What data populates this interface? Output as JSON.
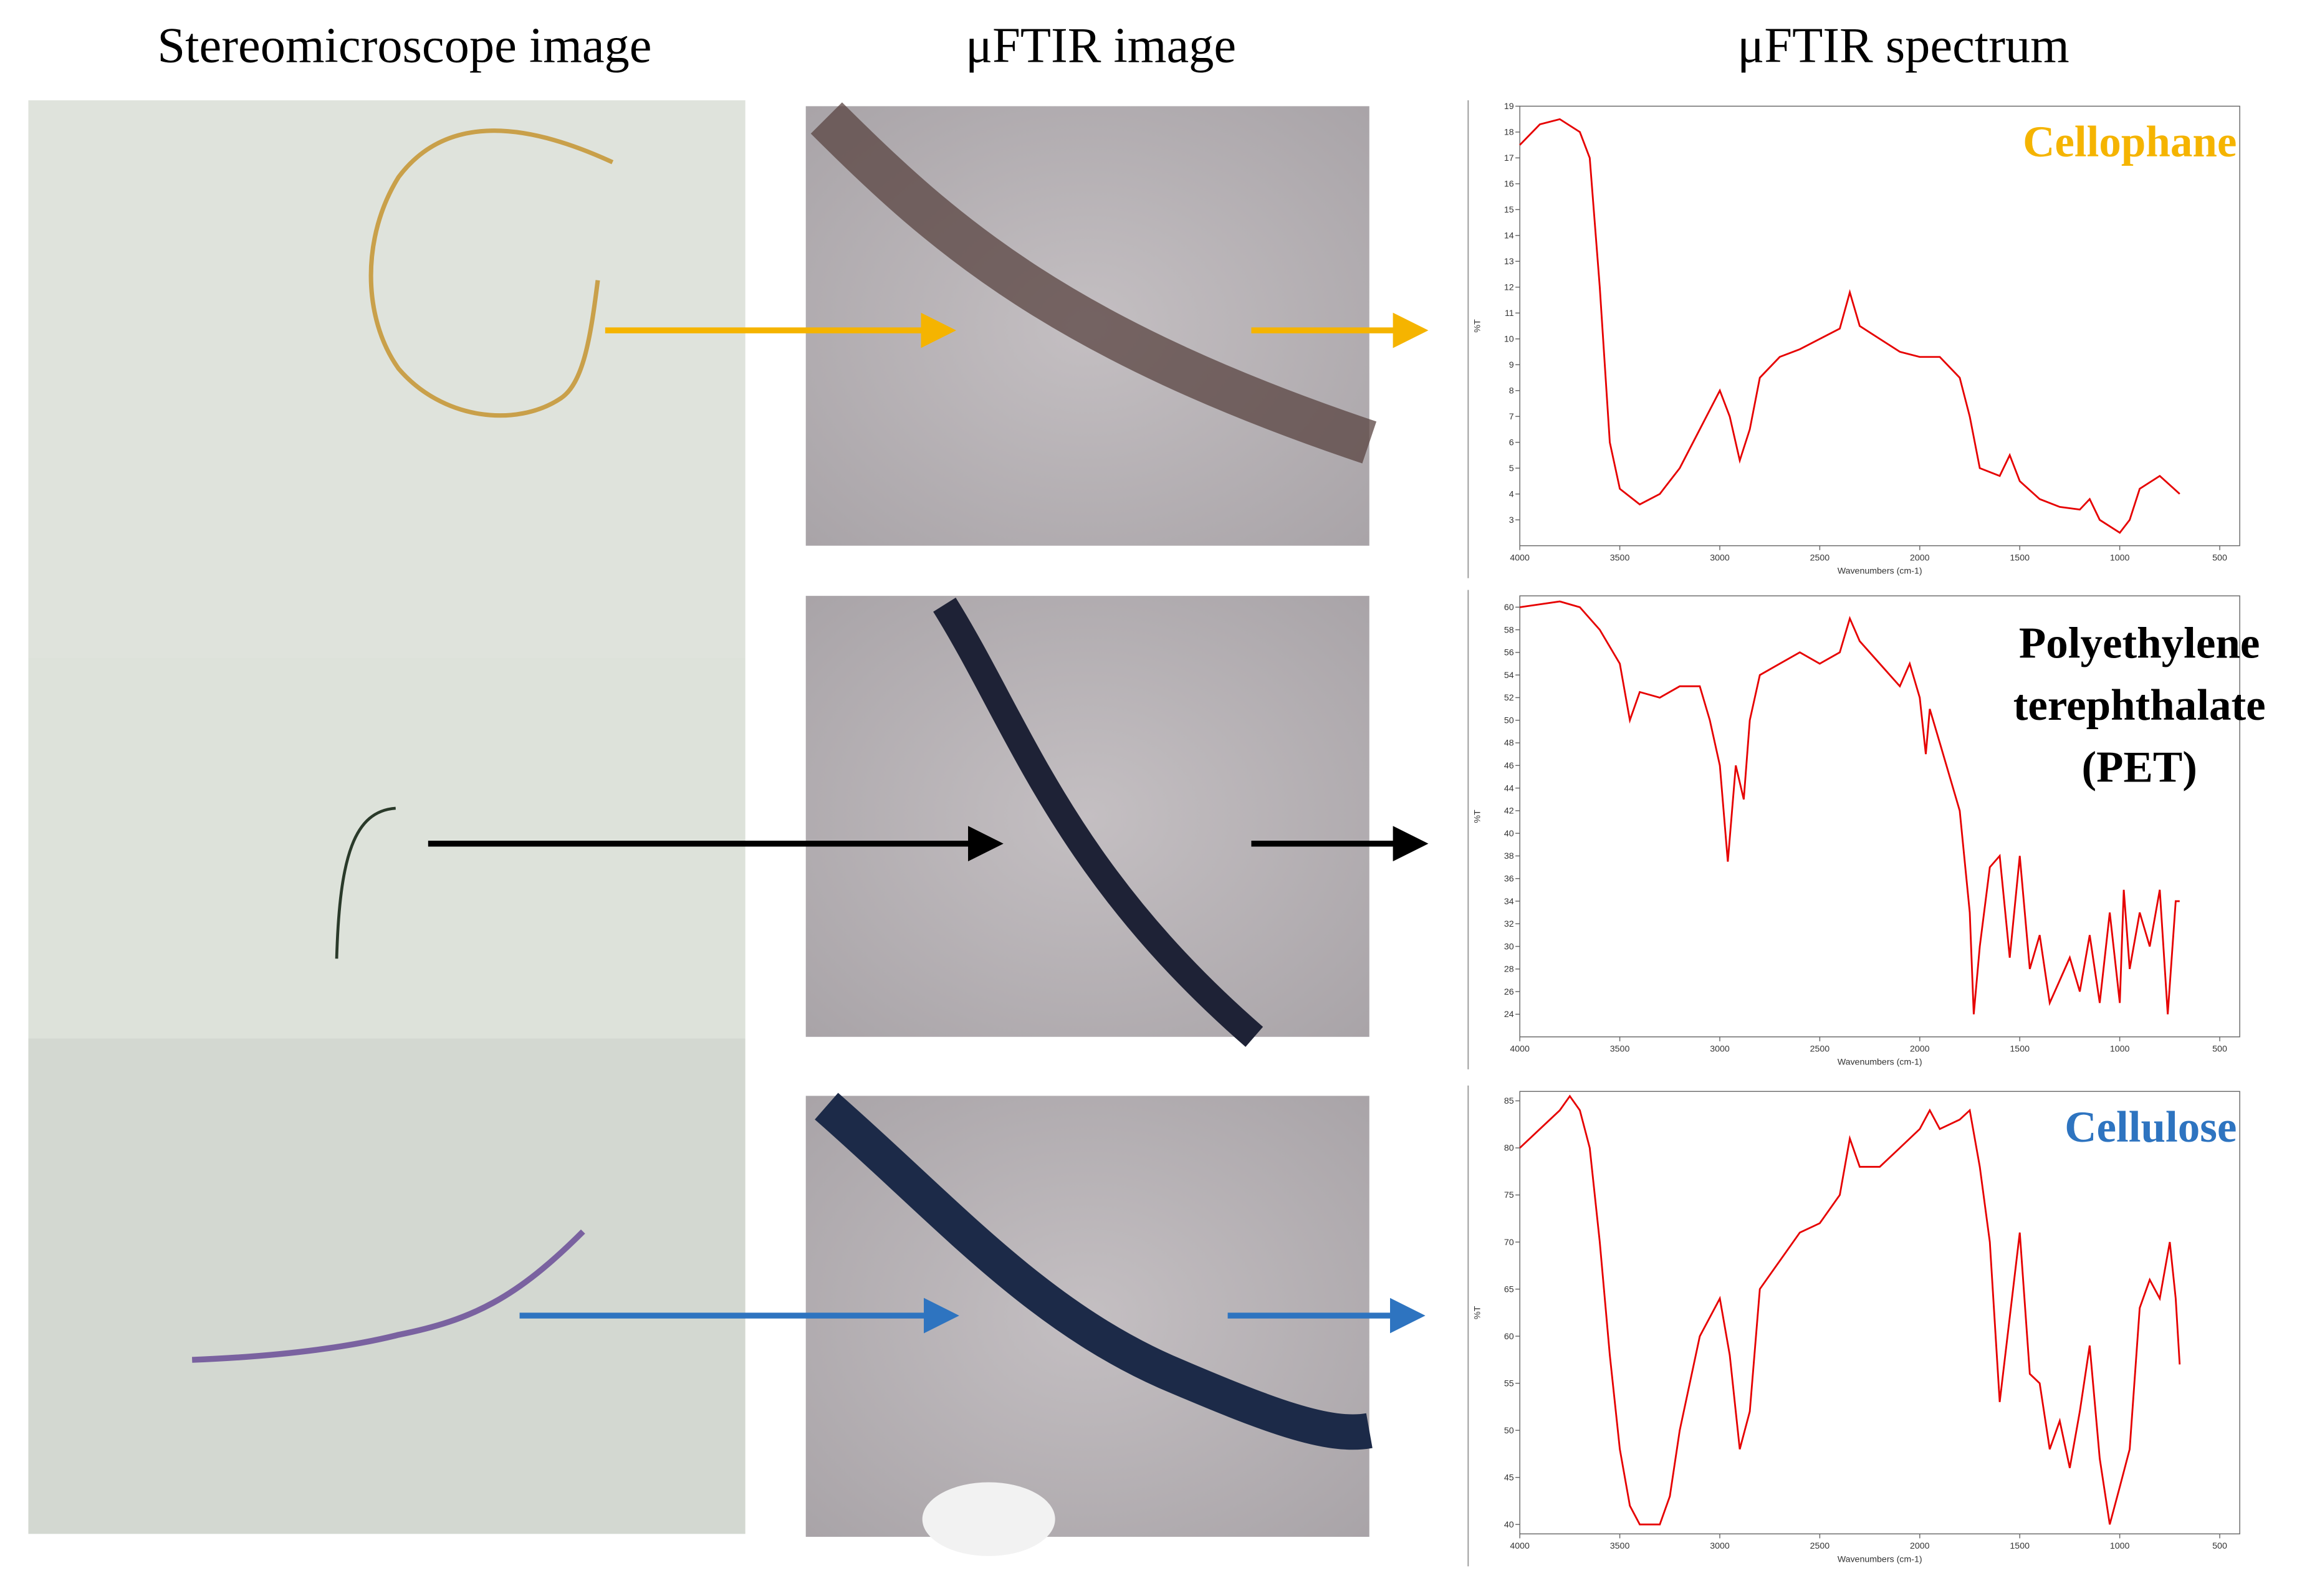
{
  "headers": [
    "Stereomicroscope image",
    "μFTIR image",
    "μFTIR spectrum"
  ],
  "chart_data": [
    {
      "type": "line",
      "label": [
        "Cellophane"
      ],
      "label_color": "#f5b400",
      "color": "#e60000",
      "ylabel": "%T",
      "xlabel": "Wavenumbers (cm-1)",
      "xlim": [
        4000,
        400
      ],
      "xticks": [
        4000,
        3500,
        3000,
        2500,
        2000,
        1500,
        1000,
        500
      ],
      "ylim": [
        2,
        19
      ],
      "yticks": [
        3,
        4,
        5,
        6,
        7,
        8,
        9,
        10,
        11,
        12,
        13,
        14,
        15,
        16,
        17,
        18,
        19
      ],
      "x": [
        4000,
        3900,
        3800,
        3700,
        3650,
        3600,
        3550,
        3500,
        3400,
        3300,
        3200,
        3100,
        3000,
        2950,
        2900,
        2850,
        2800,
        2700,
        2600,
        2500,
        2400,
        2350,
        2300,
        2200,
        2100,
        2000,
        1900,
        1800,
        1750,
        1700,
        1600,
        1550,
        1500,
        1400,
        1300,
        1200,
        1150,
        1100,
        1000,
        950,
        900,
        800,
        700
      ],
      "values": [
        17.5,
        18.3,
        18.5,
        18,
        17,
        12,
        6,
        4.2,
        3.6,
        4,
        5,
        6.5,
        8,
        7,
        5.3,
        6.5,
        8.5,
        9.3,
        9.6,
        10,
        10.4,
        11.8,
        10.5,
        10,
        9.5,
        9.3,
        9.3,
        8.5,
        7,
        5,
        4.7,
        5.5,
        4.5,
        3.8,
        3.5,
        3.4,
        3.8,
        3,
        2.5,
        3,
        4.2,
        4.7,
        4
      ]
    },
    {
      "type": "line",
      "label": [
        "Polyethylene",
        "terephthalate",
        "(PET)"
      ],
      "label_color": "#000000",
      "color": "#e60000",
      "ylabel": "%T",
      "xlabel": "Wavenumbers (cm-1)",
      "xlim": [
        4000,
        400
      ],
      "xticks": [
        4000,
        3500,
        3000,
        2500,
        2000,
        1500,
        1000,
        500
      ],
      "ylim": [
        22,
        61
      ],
      "yticks": [
        24,
        26,
        28,
        30,
        32,
        34,
        36,
        38,
        40,
        42,
        44,
        46,
        48,
        50,
        52,
        54,
        56,
        58,
        60
      ],
      "x": [
        4000,
        3800,
        3700,
        3600,
        3500,
        3450,
        3400,
        3300,
        3200,
        3100,
        3050,
        3000,
        2960,
        2920,
        2880,
        2850,
        2800,
        2700,
        2600,
        2500,
        2400,
        2350,
        2300,
        2200,
        2100,
        2050,
        2000,
        1970,
        1950,
        1900,
        1800,
        1750,
        1730,
        1700,
        1650,
        1600,
        1550,
        1500,
        1450,
        1400,
        1350,
        1300,
        1250,
        1200,
        1150,
        1100,
        1050,
        1000,
        980,
        950,
        900,
        850,
        800,
        760,
        720,
        700
      ],
      "values": [
        60,
        60.5,
        60,
        58,
        55,
        50,
        52.5,
        52,
        53,
        53,
        50,
        46,
        37.5,
        46,
        43,
        50,
        54,
        55,
        56,
        55,
        56,
        59,
        57,
        55,
        53,
        55,
        52,
        47,
        51,
        48,
        42,
        33,
        24,
        30,
        37,
        38,
        29,
        38,
        28,
        31,
        25,
        27,
        29,
        26,
        31,
        25,
        33,
        25,
        35,
        28,
        33,
        30,
        35,
        24,
        34,
        34
      ]
    },
    {
      "type": "line",
      "label": [
        "Cellulose"
      ],
      "label_color": "#2e74c0",
      "color": "#e60000",
      "ylabel": "%T",
      "xlabel": "Wavenumbers (cm-1)",
      "xlim": [
        4000,
        400
      ],
      "xticks": [
        4000,
        3500,
        3000,
        2500,
        2000,
        1500,
        1000,
        500
      ],
      "ylim": [
        39,
        86
      ],
      "yticks": [
        40,
        45,
        50,
        55,
        60,
        65,
        70,
        75,
        80,
        85
      ],
      "x": [
        4000,
        3900,
        3800,
        3750,
        3700,
        3650,
        3600,
        3550,
        3500,
        3450,
        3400,
        3300,
        3250,
        3200,
        3100,
        3000,
        2950,
        2900,
        2850,
        2800,
        2700,
        2600,
        2500,
        2400,
        2350,
        2300,
        2200,
        2100,
        2000,
        1950,
        1900,
        1800,
        1750,
        1700,
        1650,
        1600,
        1550,
        1500,
        1450,
        1400,
        1350,
        1300,
        1250,
        1200,
        1150,
        1100,
        1050,
        1000,
        950,
        900,
        850,
        800,
        750,
        720,
        700
      ],
      "values": [
        80,
        82,
        84,
        85.5,
        84,
        80,
        70,
        58,
        48,
        42,
        40,
        40,
        43,
        50,
        60,
        64,
        58,
        48,
        52,
        65,
        68,
        71,
        72,
        75,
        81,
        78,
        78,
        80,
        82,
        84,
        82,
        83,
        84,
        78,
        70,
        53,
        62,
        71,
        56,
        55,
        48,
        51,
        46,
        52,
        59,
        47,
        40,
        44,
        48,
        63,
        66,
        64,
        70,
        64,
        57
      ]
    }
  ]
}
